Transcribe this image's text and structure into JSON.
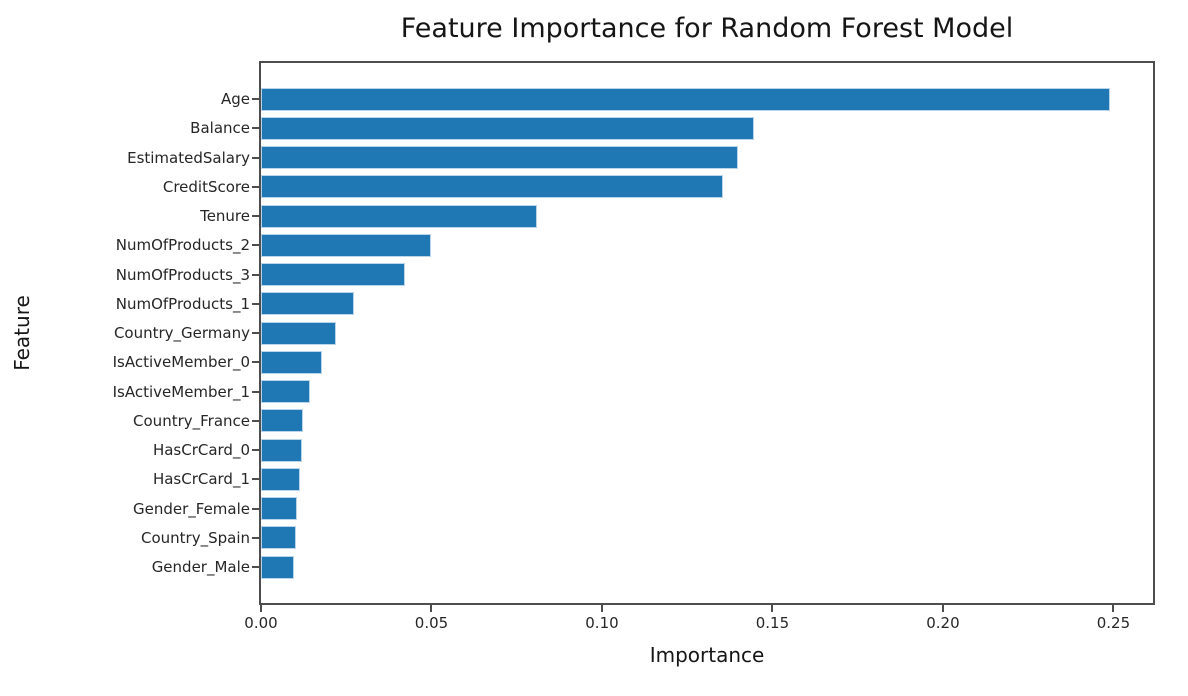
{
  "chart_data": {
    "type": "bar",
    "orientation": "horizontal",
    "title": "Feature Importance for Random Forest Model",
    "xlabel": "Importance",
    "ylabel": "Feature",
    "categories": [
      "Age",
      "Balance",
      "EstimatedSalary",
      "CreditScore",
      "Tenure",
      "NumOfProducts_2",
      "NumOfProducts_3",
      "NumOfProducts_1",
      "Country_Germany",
      "IsActiveMember_0",
      "IsActiveMember_1",
      "Country_France",
      "HasCrCard_0",
      "HasCrCard_1",
      "Gender_Female",
      "Country_Spain",
      "Gender_Male"
    ],
    "values": [
      0.249,
      0.1445,
      0.14,
      0.1355,
      0.081,
      0.05,
      0.0421,
      0.0273,
      0.022,
      0.0178,
      0.0144,
      0.0122,
      0.0119,
      0.0113,
      0.0106,
      0.0104,
      0.0097
    ],
    "xlim": [
      0,
      0.2616
    ],
    "xticks": [
      0,
      0.05,
      0.1,
      0.15,
      0.2,
      0.25
    ],
    "xtick_labels": [
      "0.00",
      "0.05",
      "0.10",
      "0.15",
      "0.20",
      "0.25"
    ],
    "grid": false,
    "legend": null,
    "bar_color": "#1f77b4",
    "bar_edge_color": "#bad4eb",
    "spine_color": "#4d4d4d",
    "background_color": "#ffffff"
  }
}
